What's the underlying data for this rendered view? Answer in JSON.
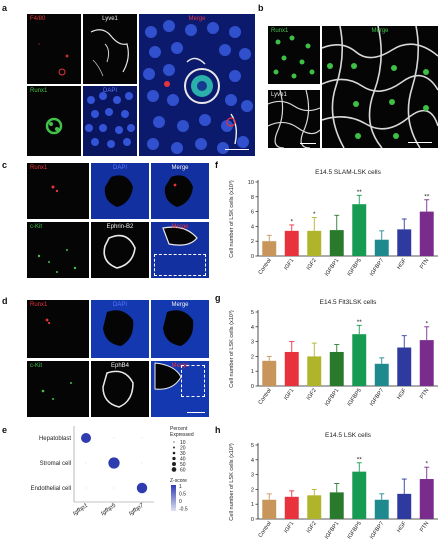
{
  "panels": {
    "a": {
      "letter": "a",
      "labels": [
        "F4/80",
        "Lyve1",
        "Merge",
        "Runx1",
        "DAPI"
      ]
    },
    "b": {
      "letter": "b",
      "labels": [
        "Runx1",
        "Merge",
        "Lyve1"
      ]
    },
    "c": {
      "letter": "c",
      "labels": [
        "Runx1",
        "DAPI",
        "Merge",
        "c-Kit",
        "Ephrin-B2",
        "Merge"
      ]
    },
    "d": {
      "letter": "d",
      "labels": [
        "Runx1",
        "DAPI",
        "Merge",
        "c-Kit",
        "EphB4",
        "Merge"
      ]
    },
    "e": {
      "letter": "e"
    }
  },
  "colors": {
    "red": "#e8323c",
    "green": "#42c24a",
    "blue": "#4b6df0",
    "white": "#f2f2f2",
    "bars": [
      "#c8965a",
      "#e8323c",
      "#b0b42a",
      "#2a7a2e",
      "#179a52",
      "#1e8a8e",
      "#2f3a9e",
      "#7a2c8c"
    ],
    "dot": "#2f3cb0"
  },
  "chart_data": [
    {
      "id": "e",
      "type": "scatter",
      "rows": [
        "Hepatoblast",
        "Stromal cell",
        "Endothelial cell"
      ],
      "columns": [
        "Igfbp1",
        "Igfbp5",
        "Igfbp7"
      ],
      "dots": [
        {
          "row": 0,
          "col": 0,
          "percent": 40,
          "z": 1
        },
        {
          "row": 0,
          "col": 1,
          "percent": 1,
          "z": -0.5
        },
        {
          "row": 0,
          "col": 2,
          "percent": 1,
          "z": -0.5
        },
        {
          "row": 1,
          "col": 0,
          "percent": 1,
          "z": -0.5
        },
        {
          "row": 1,
          "col": 1,
          "percent": 55,
          "z": 1
        },
        {
          "row": 1,
          "col": 2,
          "percent": 1,
          "z": -0.5
        },
        {
          "row": 2,
          "col": 0,
          "percent": 1,
          "z": -0.5
        },
        {
          "row": 2,
          "col": 1,
          "percent": 1,
          "z": -0.5
        },
        {
          "row": 2,
          "col": 2,
          "percent": 45,
          "z": 1
        }
      ],
      "size_legend_title": [
        "Percent",
        "Expressed"
      ],
      "size_legend": [
        "10",
        "20",
        "30",
        "40",
        "50",
        "60"
      ],
      "color_legend_title": "Z-score",
      "color_legend": [
        "1",
        "0.5",
        "0",
        "-0.5"
      ]
    },
    {
      "id": "f",
      "type": "bar",
      "title": "E14.5 SLAM-LSK cells",
      "ylabel": "Cell number of LSK cells (x10³)",
      "categories": [
        "Control",
        "IGF1",
        "IGF2",
        "IGFBP1",
        "IGFBP5",
        "IGFBP7",
        "HGF",
        "PTN"
      ],
      "values": [
        2,
        3.4,
        3.4,
        3.5,
        7,
        2.2,
        3.6,
        6
      ],
      "errors": [
        0.8,
        0.8,
        1.8,
        2.0,
        1.2,
        1.2,
        1.4,
        1.6
      ],
      "significance": [
        "",
        "*",
        "*",
        "",
        "**",
        "",
        "",
        "**"
      ],
      "ylim": [
        0,
        10
      ],
      "yticks": [
        "0",
        "2",
        "4",
        "6",
        "8",
        "10"
      ]
    },
    {
      "id": "g",
      "type": "bar",
      "title": "E14.5 Flt3LSK cells",
      "ylabel": "Cell number of LSK cells (x10³)",
      "categories": [
        "Control",
        "IGF1",
        "IGF2",
        "IGFBP1",
        "IGFBP5",
        "IGFBP7",
        "HGF",
        "PTN"
      ],
      "values": [
        1.7,
        2.3,
        2.0,
        2.3,
        3.5,
        1.5,
        2.6,
        3.1
      ],
      "errors": [
        0.3,
        0.7,
        0.9,
        0.5,
        0.6,
        0.4,
        0.8,
        0.9
      ],
      "significance": [
        "",
        "",
        "",
        "",
        "**",
        "",
        "",
        "*"
      ],
      "ylim": [
        0,
        5
      ],
      "yticks": [
        "0",
        "1",
        "2",
        "3",
        "4",
        "5"
      ]
    },
    {
      "id": "h",
      "type": "bar",
      "title": "E14.5 LSK cells",
      "ylabel": "Cell number of LSK cells (x10³)",
      "categories": [
        "Control",
        "IGF1",
        "IGF2",
        "IGFBP1",
        "IGFBP5",
        "IGFBP7",
        "HGF",
        "PTN"
      ],
      "values": [
        1.3,
        1.5,
        1.6,
        1.8,
        3.2,
        1.3,
        1.7,
        2.7
      ],
      "errors": [
        0.4,
        0.4,
        0.4,
        0.6,
        0.6,
        0.4,
        1.0,
        0.8
      ],
      "significance": [
        "",
        "",
        "",
        "",
        "**",
        "",
        "",
        "*"
      ],
      "ylim": [
        0,
        5
      ],
      "yticks": [
        "0",
        "1",
        "2",
        "3",
        "4",
        "5"
      ]
    }
  ]
}
